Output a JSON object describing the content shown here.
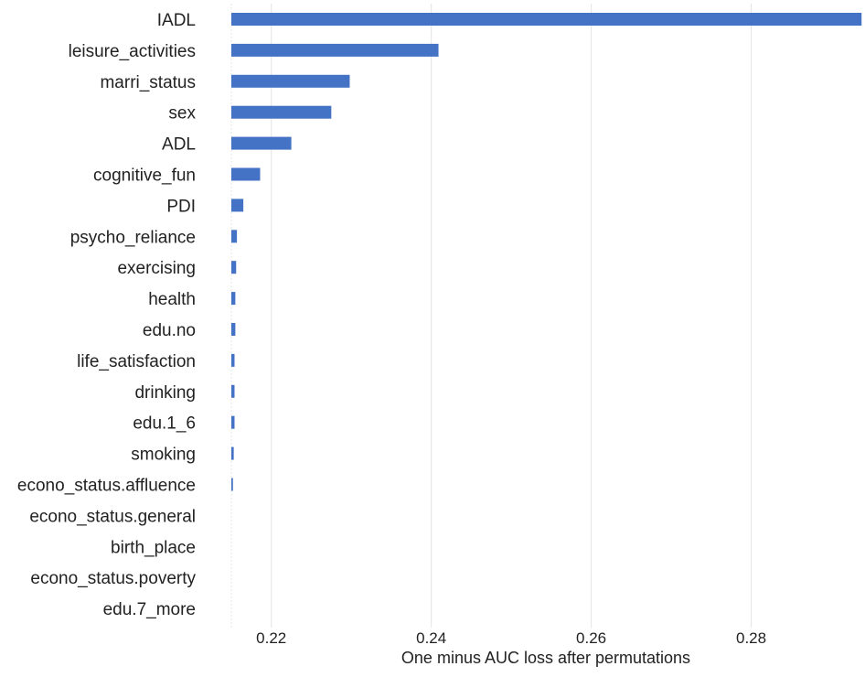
{
  "chart_data": {
    "type": "bar",
    "orientation": "horizontal",
    "title": "",
    "xlabel": "One minus AUC loss after permutations",
    "ylabel": "",
    "categories": [
      "IADL",
      "leisure_activities",
      "marri_status",
      "sex",
      "ADL",
      "cognitive_fun",
      "PDI",
      "psycho_reliance",
      "exercising",
      "health",
      "edu.no",
      "life_satisfaction",
      "drinking",
      "edu.1_6",
      "smoking",
      "econo_status.affluence",
      "econo_status.general",
      "birth_place",
      "econo_status.poverty",
      "edu.7_more"
    ],
    "values": [
      0.2938,
      0.2409,
      0.2298,
      0.2275,
      0.2225,
      0.2186,
      0.2165,
      0.2157,
      0.2156,
      0.2155,
      0.2155,
      0.2154,
      0.2154,
      0.2154,
      0.2153,
      0.2152,
      0.215,
      0.215,
      0.215,
      0.215
    ],
    "baseline": 0.215,
    "xlim": [
      0.215,
      0.294
    ],
    "xticks": [
      0.22,
      0.24,
      0.26,
      0.28
    ],
    "xtick_labels": [
      "0.22",
      "0.24",
      "0.26",
      "0.28"
    ],
    "grid": "vertical",
    "legend": "none",
    "bar_color": "#4472c4",
    "grid_color": "#e4e4e4"
  }
}
